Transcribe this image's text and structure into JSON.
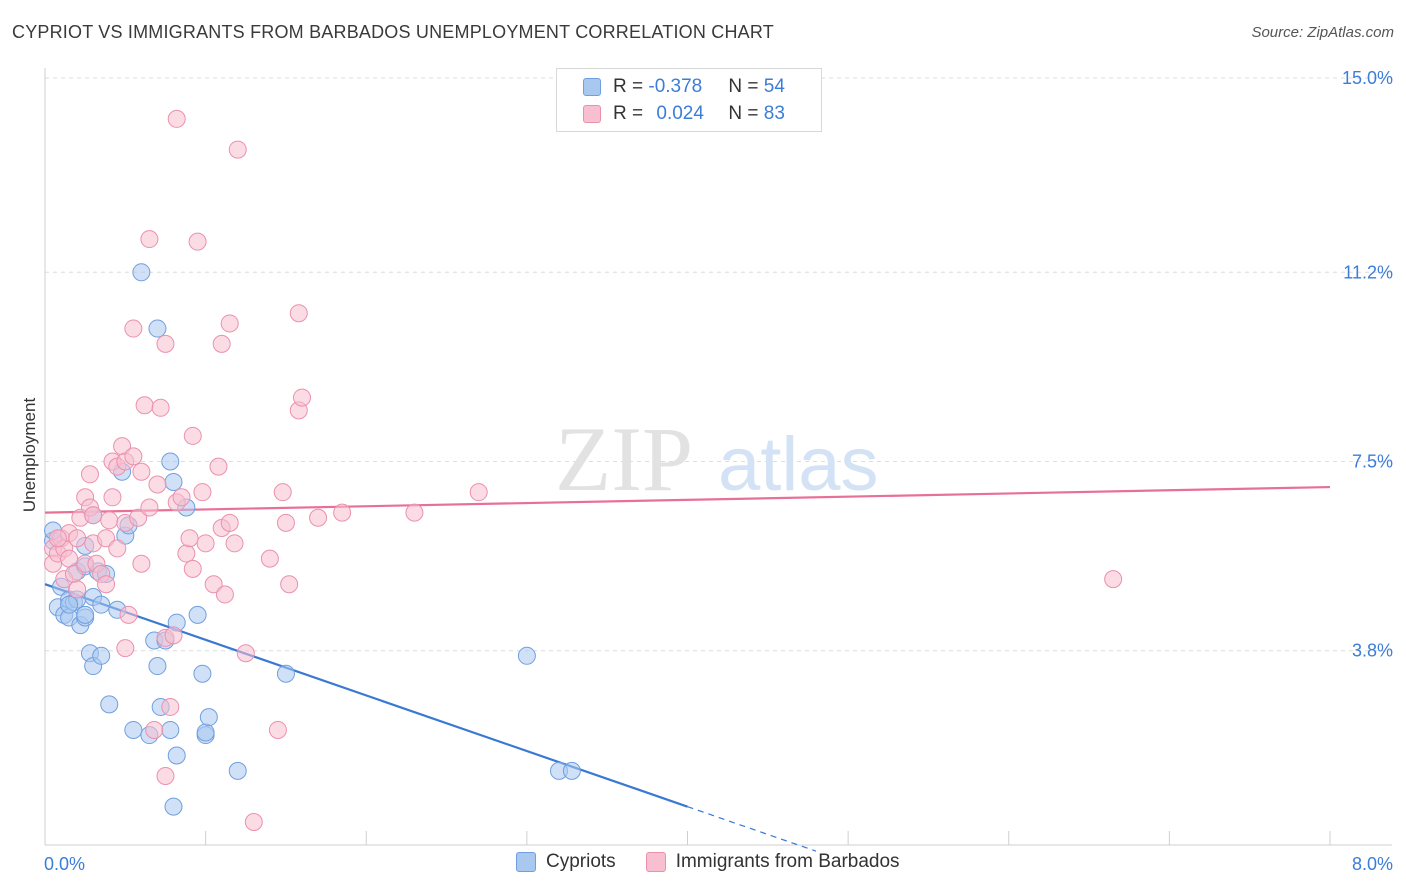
{
  "title": "CYPRIOT VS IMMIGRANTS FROM BARBADOS UNEMPLOYMENT CORRELATION CHART",
  "source": "Source: ZipAtlas.com",
  "watermark": {
    "zip": "ZIP",
    "atlas": "atlas"
  },
  "legend": {
    "r_label": "R = ",
    "n_label": "N = ",
    "rows": [
      {
        "r": "-0.378",
        "n": "54",
        "color": "#a9c8f0",
        "border": "#6f9fe0"
      },
      {
        "r": "0.024",
        "n": "83",
        "color": "#f7bfd0",
        "border": "#eb90ae"
      }
    ]
  },
  "bottom_legend": [
    {
      "label": "Cypriots",
      "color": "#a9c8f0",
      "border": "#6f9fe0"
    },
    {
      "label": "Immigrants from Barbados",
      "color": "#f7bfd0",
      "border": "#eb90ae"
    }
  ],
  "chart_data": {
    "type": "scatter",
    "title": "CYPRIOT VS IMMIGRANTS FROM BARBADOS UNEMPLOYMENT CORRELATION CHART",
    "xlabel": "",
    "ylabel": "Unemployment",
    "xlim": [
      0.0,
      8.0
    ],
    "ylim": [
      0.0,
      15.0
    ],
    "x_tick_labels": [
      {
        "value": 0.0,
        "label": "0.0%"
      },
      {
        "value": 8.0,
        "label": "8.0%"
      }
    ],
    "y_ticks": [
      {
        "value": 3.8,
        "label": "3.8%"
      },
      {
        "value": 7.5,
        "label": "7.5%"
      },
      {
        "value": 11.2,
        "label": "11.2%"
      },
      {
        "value": 15.0,
        "label": "15.0%"
      }
    ],
    "series": [
      {
        "name": "Cypriots",
        "color": "#6f9fe0",
        "fill": "#a9c8f0",
        "trend": {
          "x0": 0.0,
          "y0": 5.1,
          "x1": 4.0,
          "y1": 0.75,
          "dash_to_x": 4.8,
          "color": "#3a78d4"
        },
        "points": [
          [
            0.05,
            5.95
          ],
          [
            0.05,
            6.15
          ],
          [
            0.08,
            4.65
          ],
          [
            0.1,
            5.05
          ],
          [
            0.12,
            4.5
          ],
          [
            0.15,
            4.45
          ],
          [
            0.15,
            4.8
          ],
          [
            0.18,
            4.75
          ],
          [
            0.2,
            4.8
          ],
          [
            0.2,
            5.35
          ],
          [
            0.22,
            4.3
          ],
          [
            0.25,
            4.45
          ],
          [
            0.25,
            4.5
          ],
          [
            0.25,
            5.45
          ],
          [
            0.25,
            5.85
          ],
          [
            0.28,
            3.75
          ],
          [
            0.3,
            6.45
          ],
          [
            0.3,
            4.85
          ],
          [
            0.3,
            3.5
          ],
          [
            0.33,
            5.35
          ],
          [
            0.35,
            3.7
          ],
          [
            0.35,
            4.7
          ],
          [
            0.38,
            5.3
          ],
          [
            0.4,
            2.75
          ],
          [
            0.45,
            4.6
          ],
          [
            0.48,
            7.3
          ],
          [
            0.5,
            6.05
          ],
          [
            0.52,
            6.25
          ],
          [
            0.55,
            2.25
          ],
          [
            0.6,
            11.2
          ],
          [
            0.65,
            2.15
          ],
          [
            0.68,
            4.0
          ],
          [
            0.7,
            3.5
          ],
          [
            0.7,
            10.1
          ],
          [
            0.72,
            2.7
          ],
          [
            0.75,
            4.0
          ],
          [
            0.78,
            2.25
          ],
          [
            0.78,
            7.5
          ],
          [
            0.8,
            0.75
          ],
          [
            0.8,
            7.1
          ],
          [
            0.82,
            1.75
          ],
          [
            0.82,
            4.35
          ],
          [
            0.88,
            6.6
          ],
          [
            0.95,
            4.5
          ],
          [
            0.98,
            3.35
          ],
          [
            1.0,
            2.15
          ],
          [
            1.0,
            2.2
          ],
          [
            1.02,
            2.5
          ],
          [
            1.2,
            1.45
          ],
          [
            1.5,
            3.35
          ],
          [
            3.0,
            3.7
          ],
          [
            3.2,
            1.45
          ],
          [
            3.28,
            1.45
          ],
          [
            0.15,
            4.7
          ]
        ]
      },
      {
        "name": "Immigrants from Barbados",
        "color": "#eb90ae",
        "fill": "#f7bfd0",
        "trend": {
          "x0": 0.0,
          "y0": 6.5,
          "x1": 8.0,
          "y1": 7.0,
          "color": "#e87097"
        },
        "points": [
          [
            0.05,
            5.8
          ],
          [
            0.05,
            5.5
          ],
          [
            0.08,
            5.7
          ],
          [
            0.1,
            6.0
          ],
          [
            0.12,
            5.8
          ],
          [
            0.12,
            5.2
          ],
          [
            0.15,
            6.1
          ],
          [
            0.15,
            5.6
          ],
          [
            0.18,
            5.3
          ],
          [
            0.2,
            6.0
          ],
          [
            0.2,
            5.0
          ],
          [
            0.22,
            6.4
          ],
          [
            0.25,
            6.8
          ],
          [
            0.25,
            5.5
          ],
          [
            0.28,
            6.6
          ],
          [
            0.28,
            7.25
          ],
          [
            0.3,
            6.45
          ],
          [
            0.3,
            5.9
          ],
          [
            0.32,
            5.5
          ],
          [
            0.35,
            5.3
          ],
          [
            0.38,
            5.1
          ],
          [
            0.38,
            6.0
          ],
          [
            0.4,
            6.35
          ],
          [
            0.42,
            6.8
          ],
          [
            0.42,
            7.5
          ],
          [
            0.45,
            7.4
          ],
          [
            0.45,
            5.8
          ],
          [
            0.48,
            7.8
          ],
          [
            0.5,
            6.3
          ],
          [
            0.5,
            3.85
          ],
          [
            0.5,
            7.5
          ],
          [
            0.52,
            4.5
          ],
          [
            0.55,
            7.6
          ],
          [
            0.55,
            10.1
          ],
          [
            0.58,
            6.4
          ],
          [
            0.6,
            7.3
          ],
          [
            0.6,
            5.5
          ],
          [
            0.62,
            8.6
          ],
          [
            0.65,
            6.6
          ],
          [
            0.65,
            11.85
          ],
          [
            0.68,
            2.25
          ],
          [
            0.7,
            7.05
          ],
          [
            0.72,
            8.55
          ],
          [
            0.75,
            9.8
          ],
          [
            0.75,
            4.05
          ],
          [
            0.75,
            1.35
          ],
          [
            0.78,
            2.7
          ],
          [
            0.8,
            4.1
          ],
          [
            0.82,
            6.7
          ],
          [
            0.82,
            14.2
          ],
          [
            0.85,
            6.8
          ],
          [
            0.88,
            5.7
          ],
          [
            0.9,
            6.0
          ],
          [
            0.92,
            5.4
          ],
          [
            0.92,
            8.0
          ],
          [
            0.95,
            11.8
          ],
          [
            0.98,
            6.9
          ],
          [
            1.0,
            5.9
          ],
          [
            1.05,
            5.1
          ],
          [
            1.08,
            7.4
          ],
          [
            1.1,
            6.2
          ],
          [
            1.1,
            9.8
          ],
          [
            1.12,
            4.9
          ],
          [
            1.15,
            6.3
          ],
          [
            1.15,
            10.2
          ],
          [
            1.18,
            5.9
          ],
          [
            1.2,
            13.6
          ],
          [
            1.25,
            3.75
          ],
          [
            1.3,
            0.45
          ],
          [
            1.4,
            5.6
          ],
          [
            1.45,
            2.25
          ],
          [
            1.48,
            6.9
          ],
          [
            1.5,
            6.3
          ],
          [
            1.52,
            5.1
          ],
          [
            1.58,
            10.4
          ],
          [
            1.58,
            8.5
          ],
          [
            1.6,
            8.75
          ],
          [
            1.7,
            6.4
          ],
          [
            1.85,
            6.5
          ],
          [
            2.3,
            6.5
          ],
          [
            2.7,
            6.9
          ],
          [
            6.65,
            5.2
          ],
          [
            0.08,
            6.0
          ]
        ]
      }
    ]
  }
}
